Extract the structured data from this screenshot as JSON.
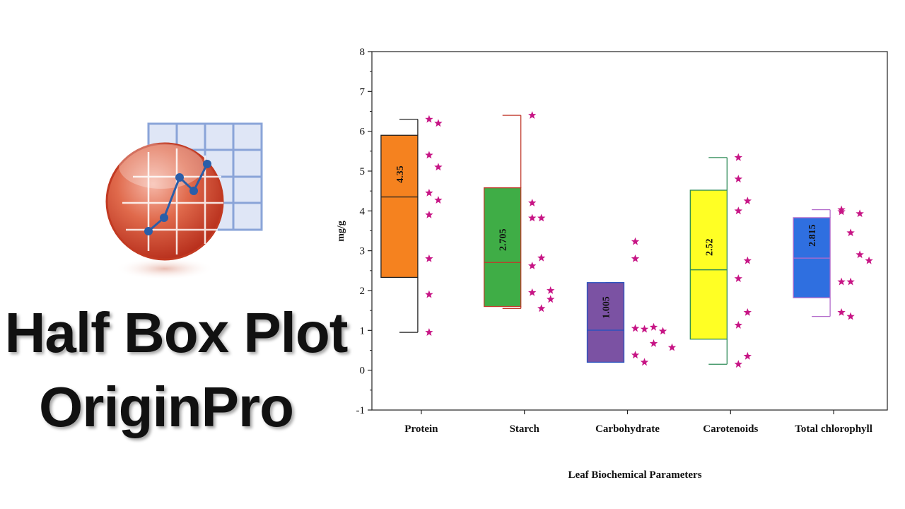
{
  "overlay": {
    "title_line1": "Half Box Plot",
    "title_line2": "OriginPro",
    "logo_icon": "originpro-logo-icon"
  },
  "chart_data": {
    "type": "box",
    "xlabel": "Leaf Biochemical Parameters",
    "ylabel": "mg/g",
    "ylim": [
      -1,
      8
    ],
    "yticks": [
      -1,
      0,
      1,
      2,
      3,
      4,
      5,
      6,
      7,
      8
    ],
    "categories": [
      "Protein",
      "Starch",
      "Carbohydrate",
      "Carotenoids",
      "Total chlorophyll"
    ],
    "boxes": [
      {
        "name": "Protein",
        "q1": 2.33,
        "median": 4.35,
        "q3": 5.9,
        "min": 0.95,
        "max": 6.3,
        "median_label": "4.35",
        "fill": "#f5821f",
        "stroke": "#222222",
        "points": [
          [
            0,
            6.3
          ],
          [
            1,
            6.2
          ],
          [
            0,
            5.4
          ],
          [
            1,
            5.1
          ],
          [
            0,
            4.45
          ],
          [
            1,
            4.27
          ],
          [
            0,
            3.9
          ],
          [
            0,
            2.8
          ],
          [
            0,
            1.9
          ],
          [
            0,
            0.95
          ]
        ]
      },
      {
        "name": "Starch",
        "q1": 1.6,
        "median": 2.705,
        "q3": 4.58,
        "min": 1.55,
        "max": 6.4,
        "median_label": "2.705",
        "fill": "#3fad46",
        "stroke": "#c0392b",
        "points": [
          [
            0,
            6.4
          ],
          [
            0,
            4.2
          ],
          [
            0,
            3.82
          ],
          [
            1,
            3.82
          ],
          [
            1,
            2.82
          ],
          [
            0,
            2.62
          ],
          [
            0,
            1.95
          ],
          [
            2,
            2.0
          ],
          [
            2,
            1.78
          ],
          [
            1,
            1.55
          ]
        ]
      },
      {
        "name": "Carbohydrate",
        "q1": 0.2,
        "median": 1.005,
        "q3": 2.2,
        "min": 0.2,
        "max": 2.2,
        "median_label": "1.005",
        "fill": "#7b52a3",
        "stroke": "#2a52be",
        "points": [
          [
            0,
            3.23
          ],
          [
            0,
            2.8
          ],
          [
            0,
            1.05
          ],
          [
            1,
            1.03
          ],
          [
            2,
            1.08
          ],
          [
            3,
            0.98
          ],
          [
            2,
            0.67
          ],
          [
            4,
            0.57
          ],
          [
            0,
            0.38
          ],
          [
            1,
            0.2
          ]
        ]
      },
      {
        "name": "Carotenoids",
        "q1": 0.78,
        "median": 2.52,
        "q3": 4.52,
        "min": 0.15,
        "max": 5.34,
        "median_label": "2.52",
        "fill": "#ffff24",
        "stroke": "#2e8b57",
        "points": [
          [
            0,
            5.34
          ],
          [
            0,
            4.8
          ],
          [
            0,
            4.0
          ],
          [
            1,
            4.25
          ],
          [
            1,
            2.75
          ],
          [
            0,
            2.3
          ],
          [
            1,
            1.45
          ],
          [
            0,
            1.13
          ],
          [
            1,
            0.35
          ],
          [
            0,
            0.15
          ]
        ]
      },
      {
        "name": "Total chlorophyll",
        "q1": 1.82,
        "median": 2.815,
        "q3": 3.83,
        "min": 1.35,
        "max": 4.03,
        "median_label": "2.815",
        "fill": "#2f6fe0",
        "stroke": "#b36bcb",
        "points": [
          [
            0,
            4.03
          ],
          [
            0,
            3.98
          ],
          [
            2,
            3.93
          ],
          [
            1,
            3.45
          ],
          [
            2,
            2.9
          ],
          [
            3,
            2.75
          ],
          [
            0,
            2.22
          ],
          [
            1,
            2.22
          ],
          [
            0,
            1.45
          ],
          [
            1,
            1.35
          ]
        ]
      }
    ],
    "point_color": "#c71585",
    "grid": false,
    "legend": "none"
  }
}
